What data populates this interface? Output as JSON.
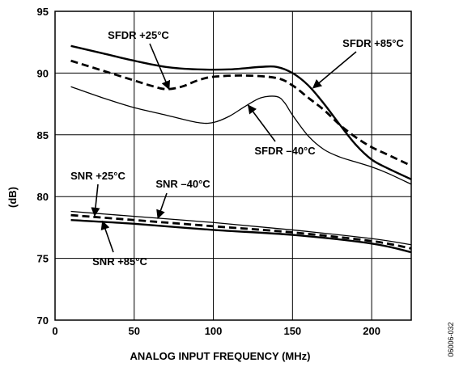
{
  "chart_data": {
    "type": "line",
    "xlabel": "ANALOG INPUT FREQUENCY (MHz)",
    "ylabel": "(dB)",
    "xlim": [
      0,
      225
    ],
    "ylim": [
      70,
      95
    ],
    "xticks": [
      0,
      50,
      100,
      150,
      200
    ],
    "yticks": [
      70,
      75,
      80,
      85,
      90,
      95
    ],
    "grid": true,
    "figure_id": "06006-032",
    "series": [
      {
        "name": "SFDR +85°C",
        "style": "solid-thick",
        "color": "#000000",
        "x": [
          10,
          30,
          50,
          70,
          90,
          110,
          130,
          140,
          150,
          160,
          170,
          180,
          190,
          200,
          210,
          225
        ],
        "y": [
          92.2,
          91.6,
          91.0,
          90.5,
          90.3,
          90.3,
          90.5,
          90.5,
          90.0,
          89.0,
          87.5,
          85.8,
          84.2,
          83.0,
          82.3,
          81.4
        ]
      },
      {
        "name": "SFDR +25°C",
        "style": "dashed-thick",
        "color": "#000000",
        "x": [
          10,
          30,
          50,
          60,
          70,
          80,
          90,
          100,
          120,
          140,
          150,
          160,
          170,
          180,
          190,
          200,
          210,
          225
        ],
        "y": [
          91.0,
          90.2,
          89.4,
          89.0,
          88.7,
          88.9,
          89.4,
          89.7,
          89.8,
          89.6,
          89.0,
          88.0,
          87.0,
          85.8,
          84.8,
          84.0,
          83.4,
          82.5
        ]
      },
      {
        "name": "SFDR –40°C",
        "style": "solid-thin",
        "color": "#000000",
        "x": [
          10,
          30,
          50,
          70,
          90,
          100,
          110,
          120,
          130,
          140,
          145,
          150,
          160,
          170,
          180,
          190,
          200,
          210,
          225
        ],
        "y": [
          88.9,
          88.0,
          87.2,
          86.6,
          86.0,
          86.0,
          86.5,
          87.3,
          88.0,
          88.1,
          87.6,
          86.6,
          84.9,
          83.8,
          83.2,
          82.8,
          82.4,
          81.9,
          81.0
        ]
      },
      {
        "name": "SNR –40°C",
        "style": "solid-thin",
        "color": "#000000",
        "x": [
          10,
          50,
          100,
          150,
          200,
          225
        ],
        "y": [
          78.8,
          78.4,
          77.9,
          77.3,
          76.6,
          76.1
        ]
      },
      {
        "name": "SNR +25°C",
        "style": "dashed-thick",
        "color": "#000000",
        "x": [
          10,
          50,
          100,
          150,
          200,
          225
        ],
        "y": [
          78.5,
          78.1,
          77.6,
          77.1,
          76.4,
          75.8
        ]
      },
      {
        "name": "SNR +85°C",
        "style": "solid-thick",
        "color": "#000000",
        "x": [
          10,
          50,
          100,
          150,
          200,
          225
        ],
        "y": [
          78.1,
          77.8,
          77.3,
          76.9,
          76.2,
          75.5
        ]
      }
    ],
    "annotations": [
      {
        "text": "SFDR +25°C",
        "points_to": [
          72,
          88.7
        ]
      },
      {
        "text": "SFDR +85°C",
        "points_to": [
          163,
          88.8
        ]
      },
      {
        "text": "SFDR –40°C",
        "points_to": [
          122,
          87.4
        ]
      },
      {
        "text": "SNR +25°C",
        "points_to": [
          25,
          78.45
        ]
      },
      {
        "text": "SNR –40°C",
        "points_to": [
          65,
          78.25
        ]
      },
      {
        "text": "SNR +85°C",
        "points_to": [
          30,
          78.0
        ]
      }
    ]
  }
}
